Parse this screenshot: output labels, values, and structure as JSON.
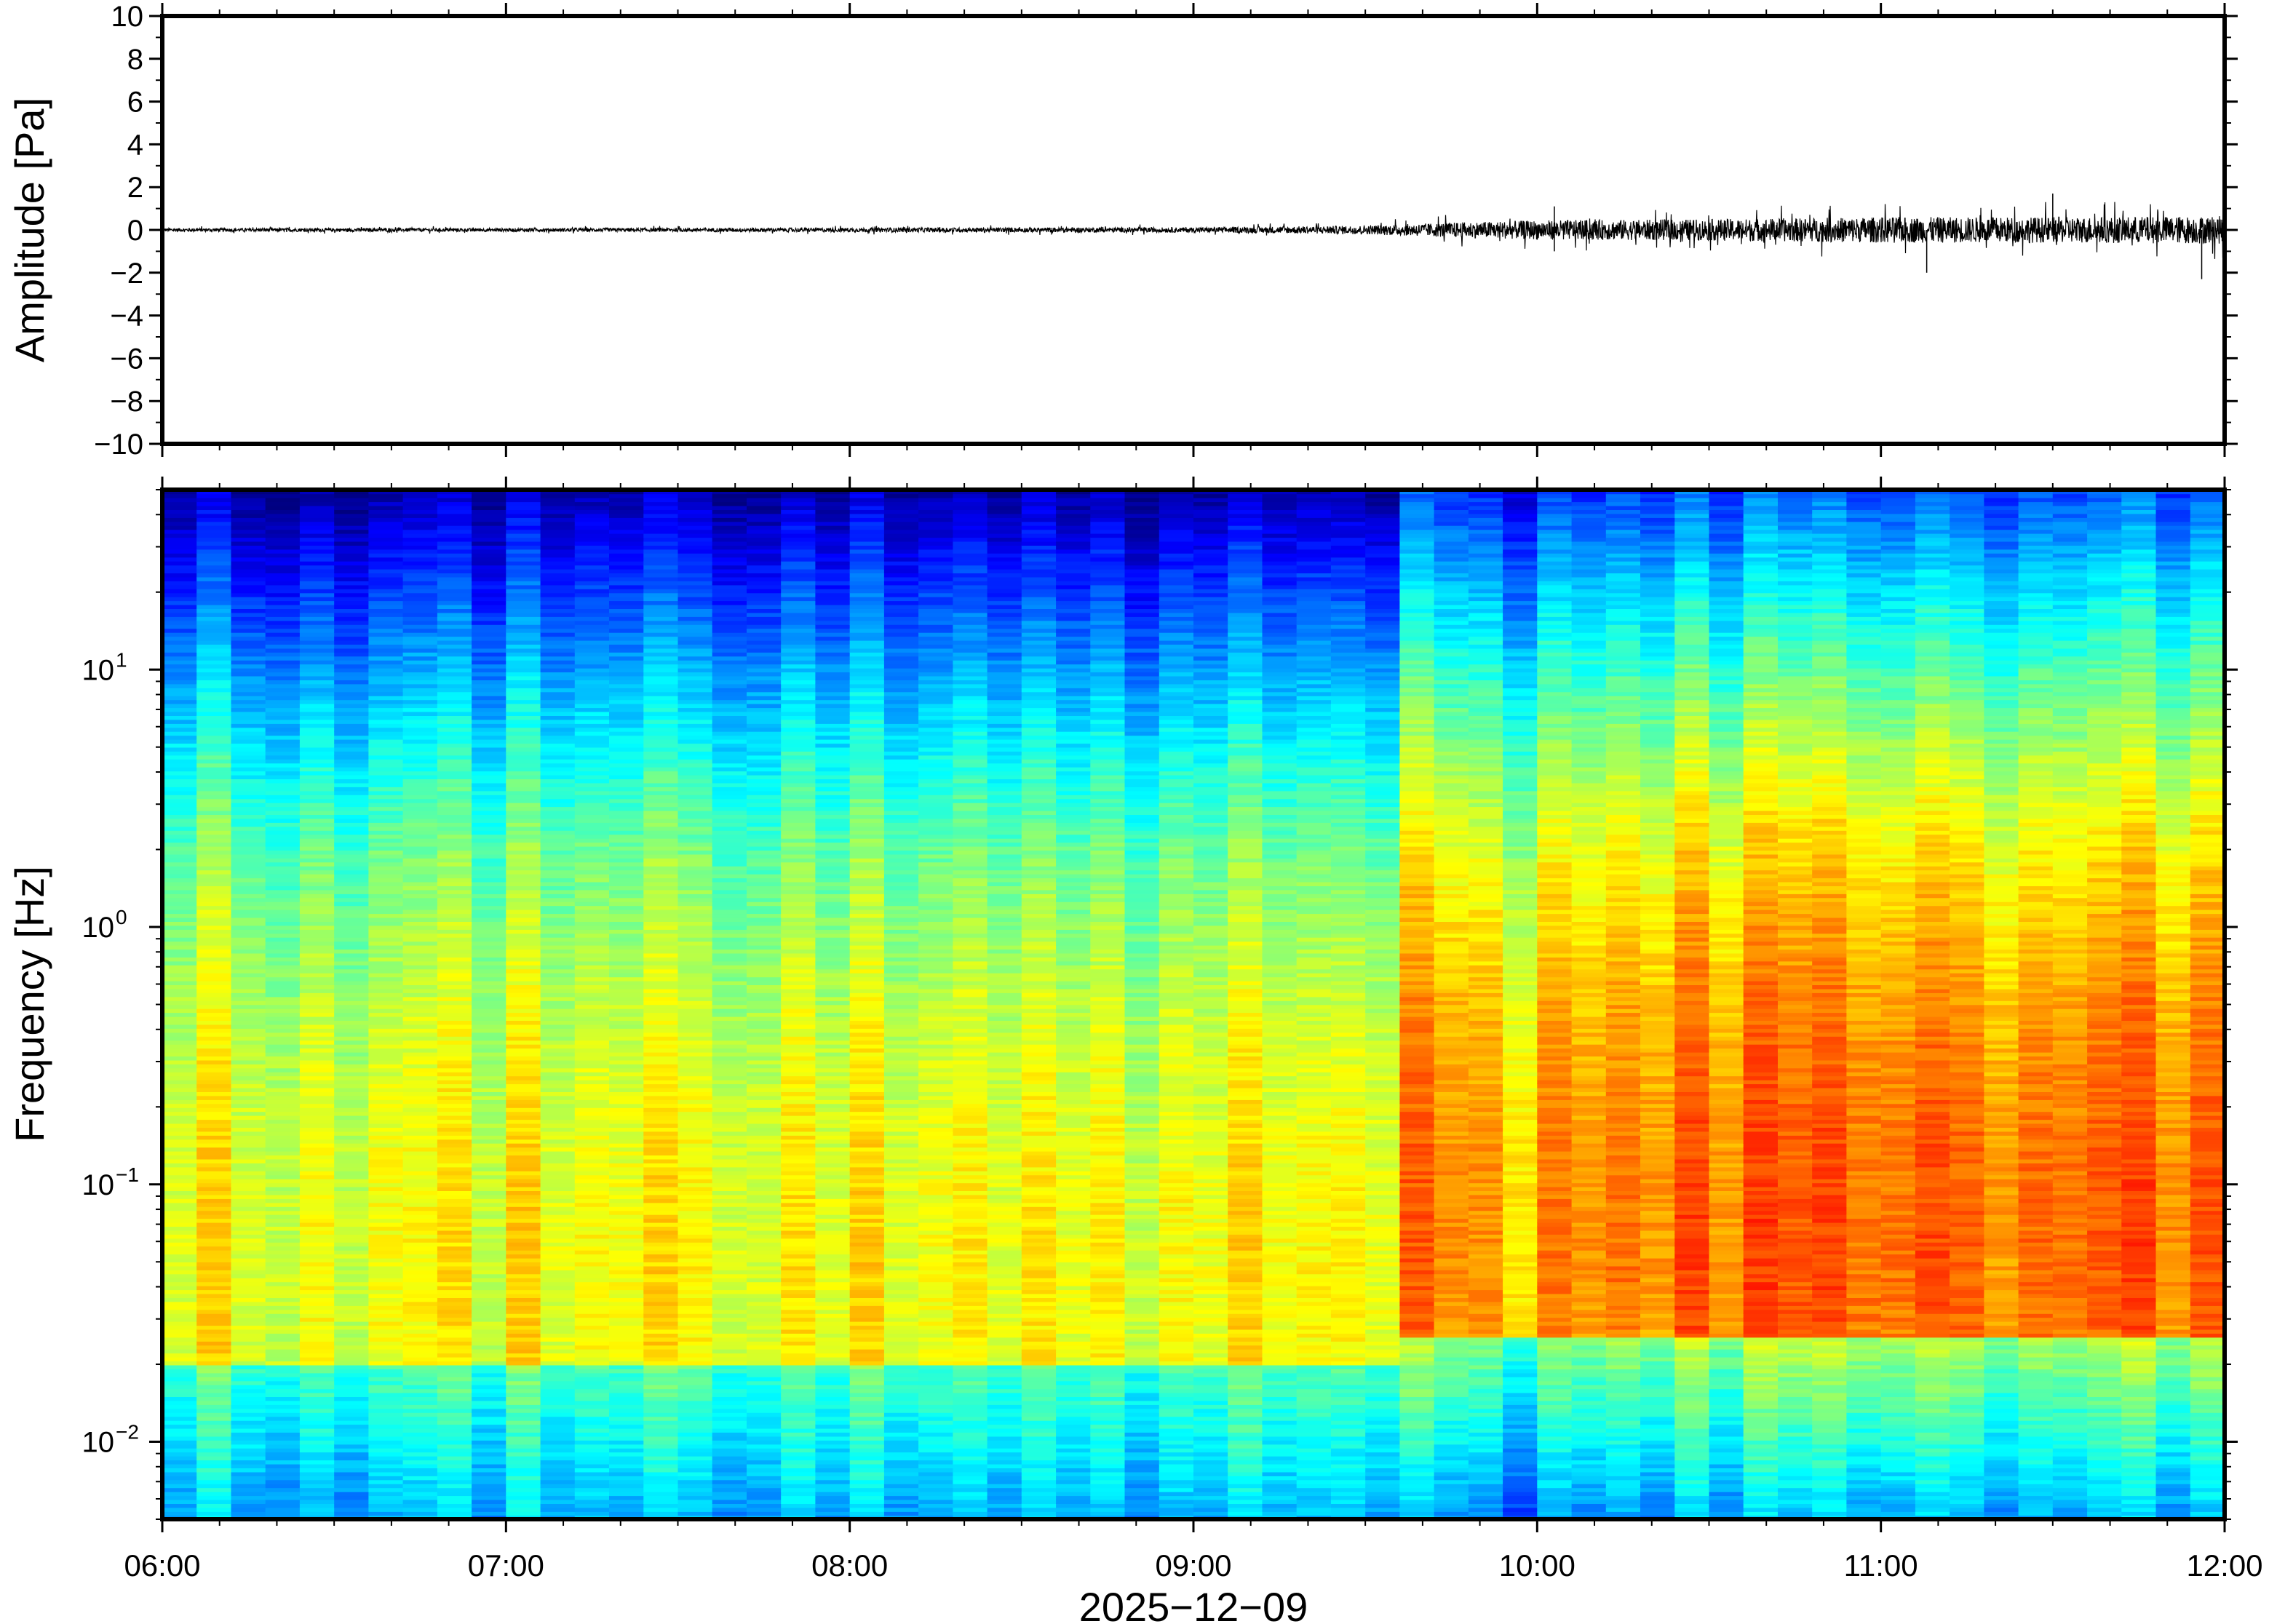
{
  "chart_data": [
    {
      "type": "line",
      "ylabel": "Amplitude [Pa]",
      "xlabel": "",
      "ylim": [
        -10,
        10
      ],
      "yticks": [
        -10,
        -8,
        -6,
        -4,
        -2,
        0,
        2,
        4,
        6,
        8,
        10
      ],
      "ytick_labels": [
        "−10",
        "−8",
        "−6",
        "−4",
        "−2",
        "0",
        "2",
        "4",
        "6",
        "8",
        "10"
      ],
      "xlim": [
        "2025-12-09T06:00",
        "2025-12-09T12:00"
      ],
      "grid": false,
      "series": [
        {
          "color": "#000000",
          "envelope": {
            "x_hours_utc": [
              6.0,
              7.0,
              8.0,
              9.0,
              9.5,
              9.75,
              10.0,
              10.5,
              11.0,
              11.5,
              12.0
            ],
            "typical_abs_amplitude": [
              0.08,
              0.08,
              0.1,
              0.12,
              0.2,
              0.35,
              0.45,
              0.5,
              0.6,
              0.6,
              0.65
            ],
            "peaks": [
              {
                "x": "10:03",
                "value": 1.1
              },
              {
                "x": "10:03",
                "value": -1.0
              },
              {
                "x": "11:08",
                "value": -2.0
              },
              {
                "x": "11:30",
                "value": 1.7
              },
              {
                "x": "11:56",
                "value": -2.3
              }
            ]
          }
        }
      ]
    },
    {
      "type": "heatmap",
      "ylabel": "Frequency [Hz]",
      "xlabel": "2025−12−09",
      "yscale": "log",
      "ylim_hz": [
        0.005,
        50
      ],
      "ytick_labels": [
        {
          "base": "10",
          "exp": "1"
        },
        {
          "base": "10",
          "exp": "0"
        },
        {
          "base": "10",
          "exp": "−1"
        },
        {
          "base": "10",
          "exp": "−2"
        }
      ],
      "xticks": [
        "06:00",
        "07:00",
        "08:00",
        "09:00",
        "10:00",
        "11:00",
        "12:00"
      ],
      "colormap": "jet",
      "time_columns": 60,
      "regime_change_time": "09:37",
      "description_levels": {
        "before": "low power (blue) above ~2 Hz, green/yellow below 0.3 Hz",
        "after": "higher power (orange/red) between 0.03 and 0.3 Hz"
      }
    }
  ],
  "figure": {
    "date_label": "2025−12−09",
    "tick_labels_x": [
      "06:00",
      "07:00",
      "08:00",
      "09:00",
      "10:00",
      "11:00",
      "12:00"
    ]
  }
}
